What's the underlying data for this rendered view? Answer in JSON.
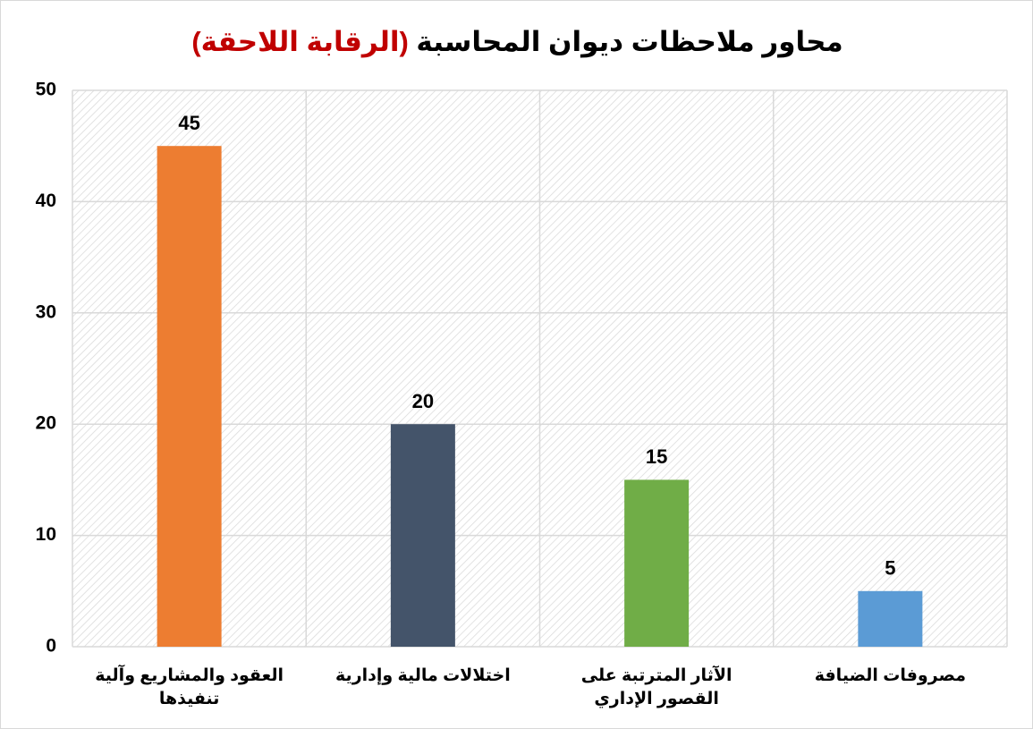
{
  "chart_data": {
    "type": "bar",
    "title": "محاور ملاحظات ديوان المحاسبة",
    "title_highlight": "(الرقابة اللاحقة)",
    "categories": [
      "العقود والمشاريع وآلية تنفيذها",
      "اختلالات مالية وإدارية",
      "الآثار المترتبة على القصور الإداري",
      "مصروفات الضيافة"
    ],
    "values": [
      45,
      20,
      15,
      5
    ],
    "colors": [
      "#ed7d31",
      "#44546a",
      "#70ad47",
      "#5b9bd5"
    ],
    "ylim": [
      0,
      50
    ],
    "yticks": [
      0,
      10,
      20,
      30,
      40,
      50
    ],
    "grid": true
  }
}
